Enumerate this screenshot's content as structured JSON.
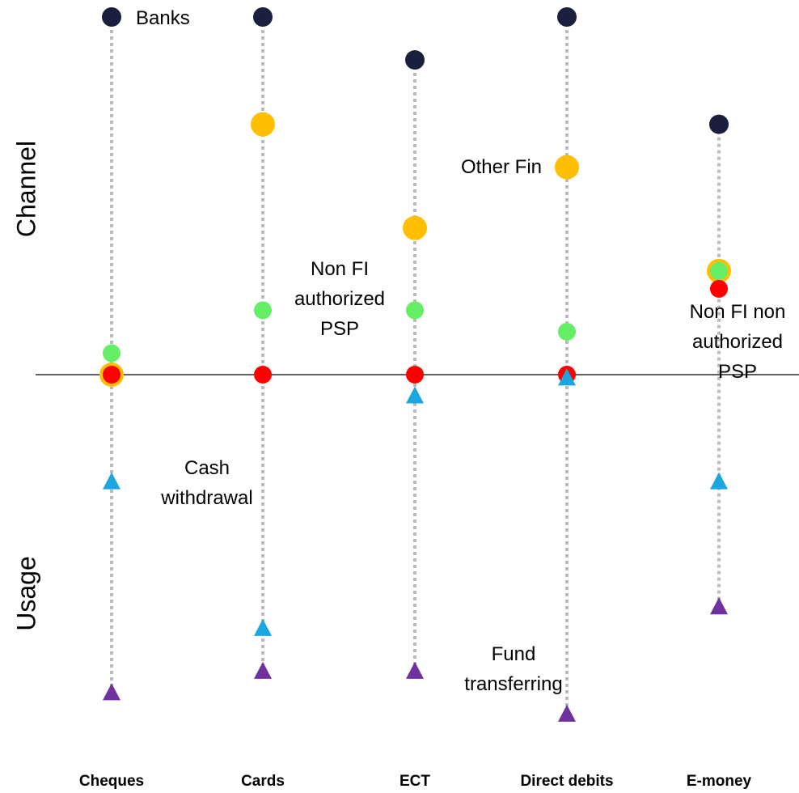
{
  "chart_data": {
    "type": "dot",
    "y_axis_labels": [
      "Channel",
      "Usage"
    ],
    "categories": [
      "Cheques",
      "Cards",
      "ECT",
      "Direct debits",
      "E-money"
    ],
    "ylim": [
      -10,
      10
    ],
    "series": [
      {
        "name": "Banks",
        "color": "#1a1f3d",
        "marker": "circle",
        "values": [
          10,
          10,
          8.8,
          10,
          7.0
        ]
      },
      {
        "name": "Other Fin",
        "color": "#ffbf00",
        "marker": "circle",
        "values": [
          0,
          7.0,
          4.1,
          5.8,
          2.9
        ]
      },
      {
        "name": "Non FI authorized PSP",
        "color": "#66ee66",
        "marker": "circle",
        "values": [
          0.6,
          1.8,
          1.8,
          1.2,
          2.9
        ]
      },
      {
        "name": "Non FI non authorized PSP",
        "color": "#ff0000",
        "marker": "circle",
        "values": [
          0,
          0,
          0,
          0,
          2.4
        ]
      },
      {
        "name": "Cash withdrawal",
        "color": "#1aa7e0",
        "marker": "triangle",
        "values": [
          -3.0,
          -7.1,
          -0.6,
          -0.1,
          -3.0
        ]
      },
      {
        "name": "Fund transferring",
        "color": "#7030a0",
        "marker": "triangle",
        "values": [
          -8.9,
          -8.3,
          -8.3,
          -9.5,
          -6.5
        ]
      }
    ]
  }
}
